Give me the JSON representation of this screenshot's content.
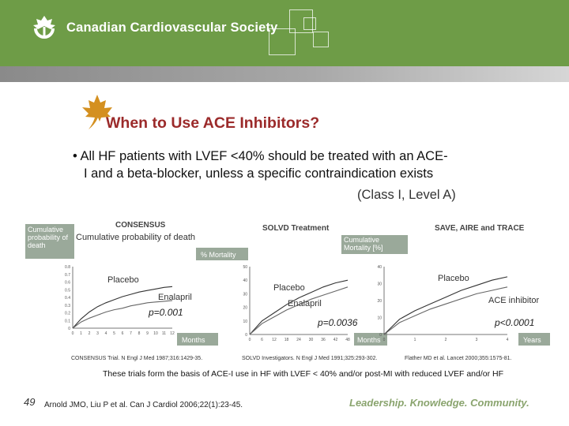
{
  "header": {
    "org_name": "Canadian Cardiovascular Society",
    "bar_color": "#6e9c47"
  },
  "slide": {
    "title": "When to Use ACE Inhibitors?",
    "bullet_line1": "• All HF patients with LVEF <40% should be treated with an ACE-",
    "bullet_line2": "I  and a beta-blocker, unless a specific contraindication exists",
    "classification": "(Class I, Level A)",
    "note": "These trials form the basis of ACE-I use in HF with LVEF < 40% and/or post-MI with reduced LVEF and/or HF",
    "page_number": "49",
    "reference": "Arnold JMO, Liu P et al. Can J Cardiol 2006;22(1):23-45.",
    "motto": "Leadership. Knowledge. Community."
  },
  "chart_data": [
    {
      "type": "line",
      "title": "CONSENSUS",
      "subtitle": "Cumulative probability of death",
      "ylabel": "Cumulative probability of death",
      "xlabel": "Months",
      "x_ticks": [
        "0",
        "1",
        "2",
        "3",
        "4",
        "5",
        "6",
        "7",
        "8",
        "9",
        "10",
        "11",
        "12"
      ],
      "y_ticks": [
        "0",
        "0.1",
        "0.2",
        "0.3",
        "0.4",
        "0.5",
        "0.6",
        "0.7",
        "0.8"
      ],
      "ylim": [
        0,
        0.8
      ],
      "xlim": [
        0,
        12
      ],
      "series": [
        {
          "name": "Placebo",
          "x": [
            0,
            1,
            2,
            3,
            4,
            5,
            6,
            7,
            8,
            9,
            10,
            11,
            12
          ],
          "values": [
            0,
            0.12,
            0.21,
            0.28,
            0.33,
            0.37,
            0.41,
            0.44,
            0.47,
            0.49,
            0.51,
            0.53,
            0.54
          ]
        },
        {
          "name": "Enalapril",
          "x": [
            0,
            1,
            2,
            3,
            4,
            5,
            6,
            7,
            8,
            9,
            10,
            11,
            12
          ],
          "values": [
            0,
            0.08,
            0.13,
            0.17,
            0.21,
            0.24,
            0.26,
            0.29,
            0.31,
            0.33,
            0.34,
            0.35,
            0.36
          ]
        }
      ],
      "p_value": "p=0.001",
      "citation": "CONSENSUS Trial. N Engl J Med 1987;316:1429-35."
    },
    {
      "type": "line",
      "title": "SOLVD Treatment",
      "ylabel": "% Mortality",
      "xlabel": "Months",
      "x_ticks": [
        "0",
        "6",
        "12",
        "18",
        "24",
        "30",
        "36",
        "42",
        "48"
      ],
      "y_ticks": [
        "0",
        "10",
        "20",
        "30",
        "40",
        "50"
      ],
      "ylim": [
        0,
        50
      ],
      "xlim": [
        0,
        48
      ],
      "series": [
        {
          "name": "Placebo",
          "x": [
            0,
            6,
            12,
            18,
            24,
            30,
            36,
            42,
            48
          ],
          "values": [
            0,
            10,
            16,
            22,
            27,
            31,
            35,
            38,
            40
          ]
        },
        {
          "name": "Enalapril",
          "x": [
            0,
            6,
            12,
            18,
            24,
            30,
            36,
            42,
            48
          ],
          "values": [
            0,
            8,
            13,
            18,
            22,
            26,
            29,
            32,
            35
          ]
        }
      ],
      "p_value": "p=0.0036",
      "citation": "SOLVD Investigators. N Engl J Med 1991;325:293-302."
    },
    {
      "type": "line",
      "title": "SAVE, AIRE and TRACE",
      "ylabel": "Cumulative Mortality [%]",
      "xlabel": "Years",
      "x_ticks": [
        "0",
        "1",
        "2",
        "3",
        "4"
      ],
      "y_ticks": [
        "0",
        "10",
        "20",
        "30",
        "40"
      ],
      "ylim": [
        0,
        40
      ],
      "xlim": [
        0,
        4
      ],
      "series": [
        {
          "name": "Placebo",
          "x": [
            0,
            0.5,
            1,
            1.5,
            2,
            2.5,
            3,
            3.5,
            4
          ],
          "values": [
            0,
            9,
            14,
            18,
            22,
            26,
            29,
            32,
            34
          ]
        },
        {
          "name": "ACE inhibitor",
          "x": [
            0,
            0.5,
            1,
            1.5,
            2,
            2.5,
            3,
            3.5,
            4
          ],
          "values": [
            0,
            7,
            11,
            15,
            18,
            21,
            24,
            26,
            28
          ]
        }
      ],
      "p_value": "p<0.0001",
      "citation": "Flather MD et al. Lancet 2000;355:1575-81."
    }
  ]
}
